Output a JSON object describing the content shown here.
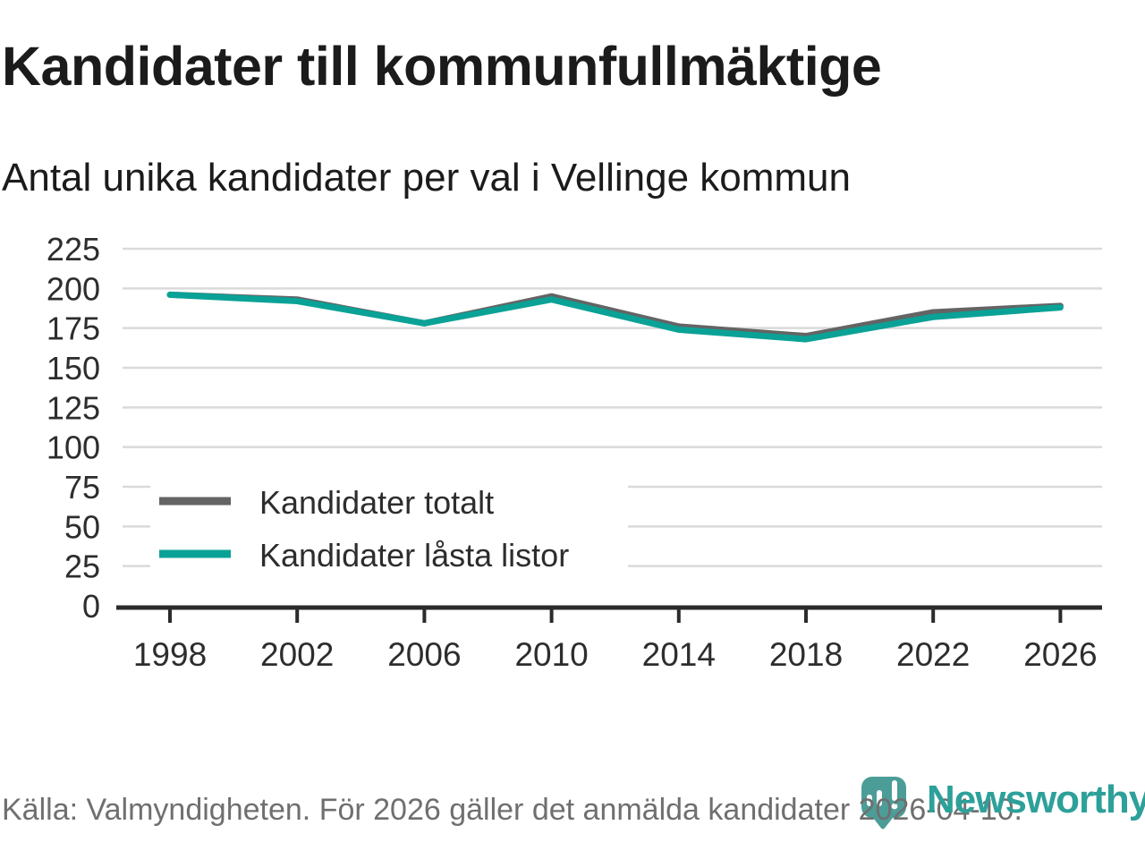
{
  "chart_data": {
    "type": "line",
    "title": "Kandidater till kommunfullmäktige",
    "subtitle": "Antal unika kandidater per val i Vellinge kommun",
    "x": [
      1998,
      2002,
      2006,
      2010,
      2014,
      2018,
      2022,
      2026
    ],
    "series": [
      {
        "name": "Kandidater totalt",
        "color": "#646464",
        "values": [
          196,
          193,
          178,
          195,
          176,
          170,
          185,
          189
        ]
      },
      {
        "name": "Kandidater låsta listor",
        "color": "#0aa296",
        "values": [
          196,
          192,
          178,
          193,
          174,
          168,
          182,
          188
        ]
      }
    ],
    "ylim": [
      0,
      225
    ],
    "ytick_step": 25,
    "yticks": [
      0,
      25,
      50,
      75,
      100,
      125,
      150,
      175,
      200,
      225
    ],
    "grid": "horizontal",
    "legend_position": "inside-bottom-left"
  },
  "footer": {
    "source_text": "Källa: Valmyndigheten. För 2026 gäller det anmälda kandidater 2026-04-10."
  },
  "branding": {
    "logo_text": "Newsworthy",
    "logo_icon": "bar-chart-pin-icon",
    "pin_color": "#4c9d98",
    "wordmark_color": "#2ea09a"
  },
  "style": {
    "gridline_color": "#dadada",
    "axis_color": "#2b2b2b",
    "tick_label_color": "#2d2d2d"
  }
}
